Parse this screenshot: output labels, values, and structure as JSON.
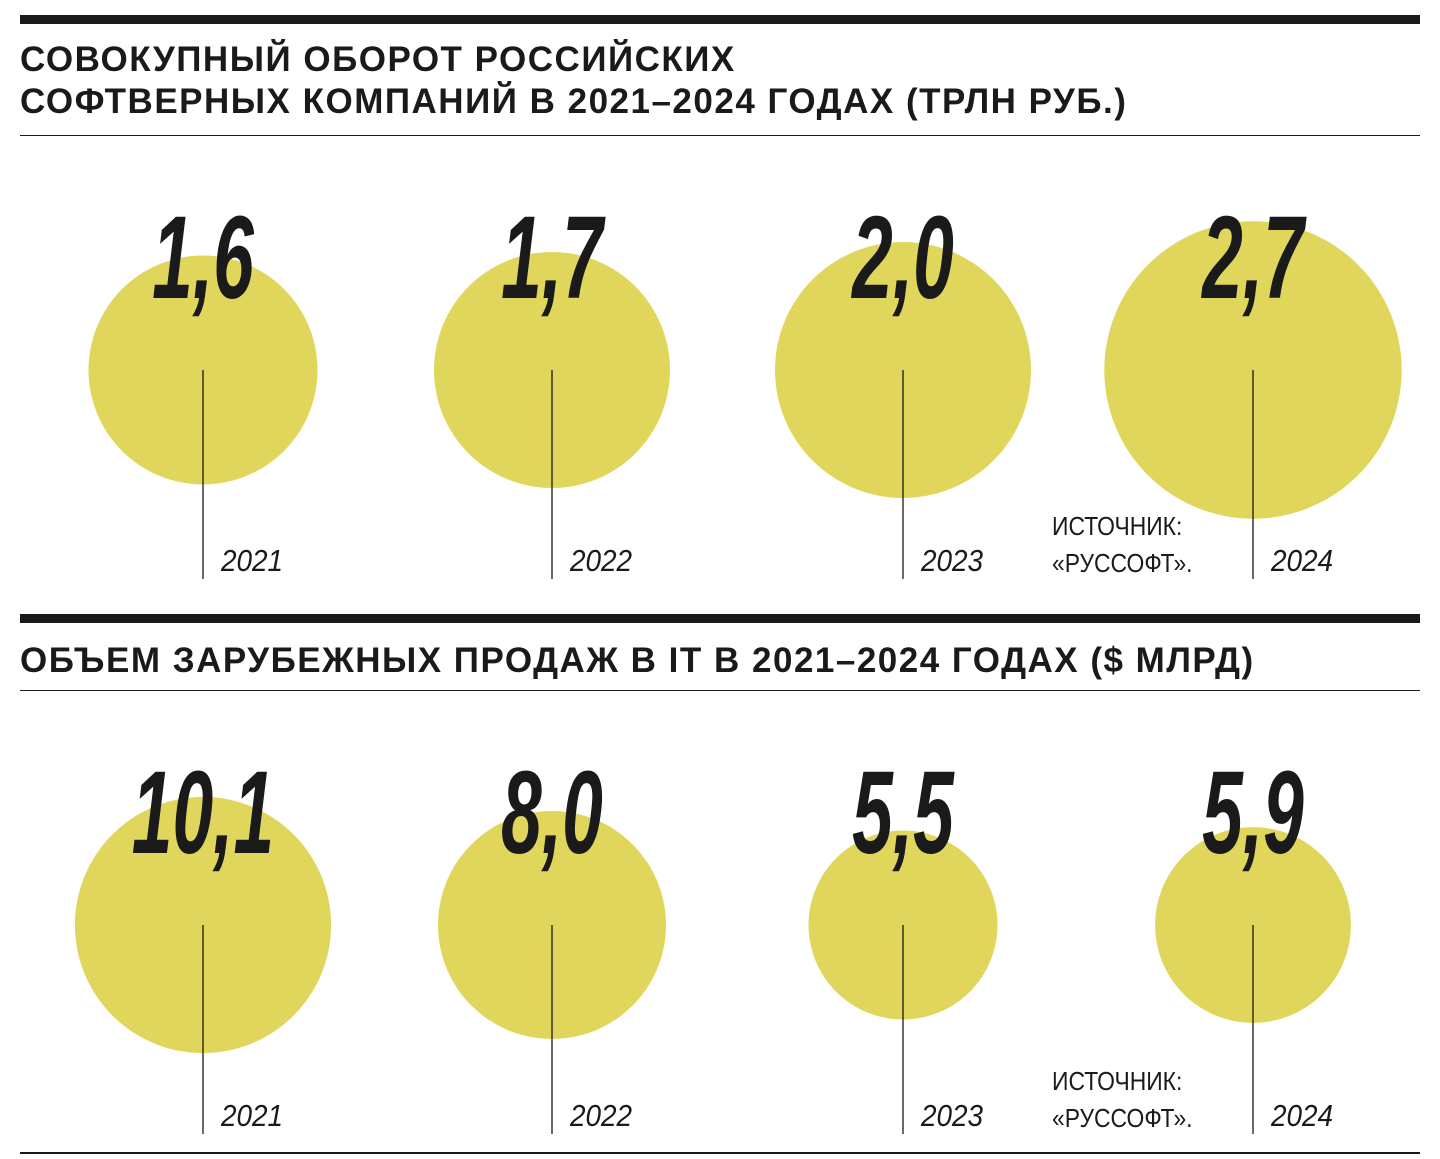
{
  "chart_data": [
    {
      "type": "bubble",
      "title": "СОВОКУПНЫЙ ОБОРОТ РОССИЙСКИХ СОФТВЕРНЫХ КОМПАНИЙ В 2021–2024 ГОДАХ (ТРЛН РУБ.)",
      "title_lines": [
        "СОВОКУПНЫЙ ОБОРОТ РОССИЙСКИХ",
        "СОФТВЕРНЫХ КОМПАНИЙ В 2021–2024 ГОДАХ (ТРЛН РУБ.)"
      ],
      "categories": [
        "2021",
        "2022",
        "2023",
        "2024"
      ],
      "values": [
        1.6,
        1.7,
        2.0,
        2.7
      ],
      "value_labels": [
        "1,6",
        "1,7",
        "2,0",
        "2,7"
      ],
      "source": [
        "ИСТОЧНИК:",
        "«РУССОФТ»."
      ]
    },
    {
      "type": "bubble",
      "title": "ОБЪЕМ ЗАРУБЕЖНЫХ ПРОДАЖ В IT В 2021–2024 ГОДАХ ($ МЛРД)",
      "title_lines": [
        "ОБЪЕМ ЗАРУБЕЖНЫХ ПРОДАЖ В IT В 2021–2024 ГОДАХ ($ МЛРД)"
      ],
      "categories": [
        "2021",
        "2022",
        "2023",
        "2024"
      ],
      "values": [
        10.1,
        8.0,
        5.5,
        5.9
      ],
      "value_labels": [
        "10,1",
        "8,0",
        "5,5",
        "5,9"
      ],
      "source": [
        "ИСТОЧНИК:",
        "«РУССОФТ»."
      ]
    }
  ],
  "colors": {
    "bubble": "#e1d65c",
    "ink": "#1a1a1a",
    "background": "#ffffff"
  }
}
